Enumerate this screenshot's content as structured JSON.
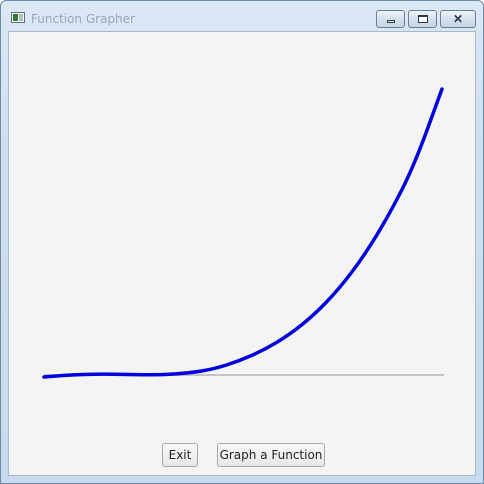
{
  "window": {
    "title": "Function Grapher",
    "controls": {
      "minimize": "minimize-icon",
      "maximize": "maximize-icon",
      "close": "close-icon",
      "close_glyph": "✕"
    }
  },
  "buttons": {
    "exit_label": "Exit",
    "graph_label": "Graph a Function"
  },
  "colors": {
    "curve": "#0000e0",
    "axis": "#b4b4b4"
  }
}
